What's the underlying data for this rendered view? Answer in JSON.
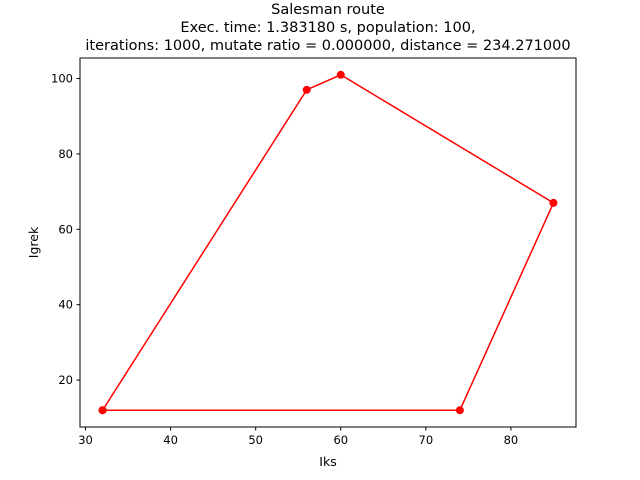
{
  "chart_data": {
    "type": "line",
    "title": "Salesman route",
    "subtitle_lines": [
      "Exec. time: 1.383180 s, population: 100,",
      "iterations: 1000, mutate ratio = 0.000000, distance = 234.271000"
    ],
    "xlabel": "Iks",
    "ylabel": "Igrek",
    "xlim": [
      29.35,
      87.65
    ],
    "ylim": [
      7.55,
      105.45
    ],
    "xticks": [
      30,
      40,
      50,
      60,
      70,
      80
    ],
    "yticks": [
      20,
      40,
      60,
      80,
      100
    ],
    "grid": false,
    "series": [
      {
        "color": "#ff0000",
        "marker": "circle",
        "points": [
          {
            "x": 32,
            "y": 12
          },
          {
            "x": 56,
            "y": 97
          },
          {
            "x": 60,
            "y": 101
          },
          {
            "x": 85,
            "y": 67
          },
          {
            "x": 74,
            "y": 12
          },
          {
            "x": 32,
            "y": 12
          }
        ]
      }
    ]
  }
}
